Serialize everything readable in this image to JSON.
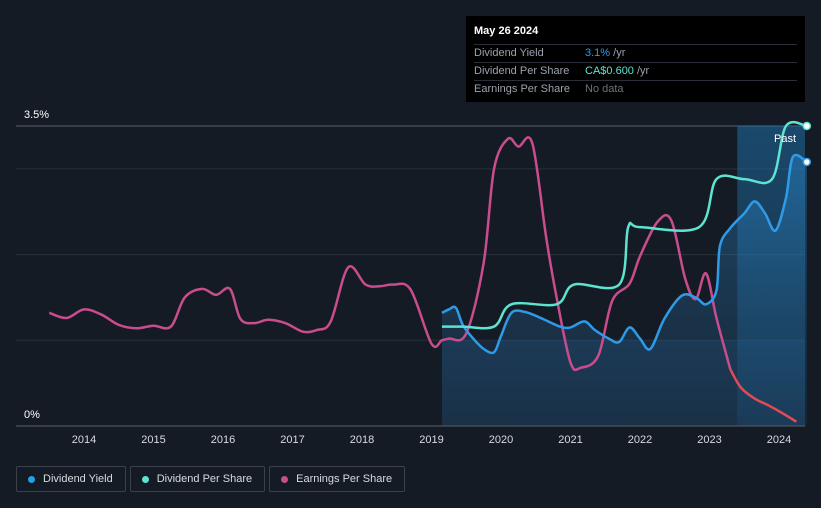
{
  "tooltip": {
    "date": "May 26 2024",
    "rows": [
      {
        "label": "Dividend Yield",
        "value": "3.1%",
        "unit": " /yr"
      },
      {
        "label": "Dividend Per Share",
        "value": "CA$0.600",
        "unit": " /yr"
      },
      {
        "label": "Earnings Per Share",
        "value": "No data"
      }
    ]
  },
  "past_label": "Past",
  "legend": [
    {
      "label": "Dividend Yield",
      "color": "#2f9ae8"
    },
    {
      "label": "Dividend Per Share",
      "color": "#5ee3d0"
    },
    {
      "label": "Earnings Per Share",
      "color": "#c94d8d"
    }
  ],
  "colors": {
    "background": "#151b24",
    "dividend_yield": "#2f9ae8",
    "dividend_per_share": "#5ee3d0",
    "earnings_per_share": "#c94d8d",
    "earnings_negative": "#e24a5a"
  },
  "chart_data": {
    "type": "line",
    "title": "",
    "xlabel": "",
    "ylabel": "",
    "y_tick_labels": [
      "0%",
      "3.5%"
    ],
    "ylim": [
      0,
      3.5
    ],
    "xlim": [
      2013.0,
      2024.4
    ],
    "x_ticks": [
      2014,
      2015,
      2016,
      2017,
      2018,
      2019,
      2020,
      2021,
      2022,
      2023,
      2024
    ],
    "past_region_start": 2023.4,
    "forecast_region_start": 2019.15,
    "series": [
      {
        "name": "Dividend Yield",
        "unit": "%",
        "x": [
          2019.15,
          2019.25,
          2019.35,
          2019.45,
          2019.6,
          2019.75,
          2019.9,
          2020.0,
          2020.15,
          2020.35,
          2020.6,
          2020.85,
          2021.0,
          2021.2,
          2021.35,
          2021.55,
          2021.7,
          2021.85,
          2022.0,
          2022.15,
          2022.35,
          2022.6,
          2022.8,
          2022.95,
          2023.1,
          2023.15,
          2023.3,
          2023.5,
          2023.65,
          2023.8,
          2023.95,
          2024.1,
          2024.2,
          2024.4
        ],
        "values": [
          1.32,
          1.36,
          1.38,
          1.18,
          1.02,
          0.9,
          0.86,
          1.05,
          1.32,
          1.33,
          1.25,
          1.16,
          1.15,
          1.22,
          1.12,
          1.02,
          0.98,
          1.15,
          1.02,
          0.9,
          1.25,
          1.52,
          1.5,
          1.42,
          1.58,
          2.1,
          2.31,
          2.48,
          2.62,
          2.48,
          2.28,
          2.66,
          3.14,
          3.08
        ]
      },
      {
        "name": "Dividend Per Share",
        "unit": "CA$",
        "x": [
          2019.15,
          2019.45,
          2019.9,
          2020.15,
          2020.8,
          2021.05,
          2021.7,
          2021.83,
          2022.0,
          2022.85,
          2023.1,
          2023.5,
          2023.9,
          2024.1,
          2024.4
        ],
        "values": [
          1.16,
          1.16,
          1.16,
          1.42,
          1.42,
          1.65,
          1.65,
          2.32,
          2.32,
          2.32,
          2.88,
          2.88,
          2.88,
          3.5,
          3.5
        ],
        "note": "values mapped to chart percent axis scale"
      },
      {
        "name": "Earnings Per Share",
        "unit": "%",
        "x": [
          2013.5,
          2013.75,
          2014.0,
          2014.25,
          2014.5,
          2014.75,
          2015.0,
          2015.25,
          2015.45,
          2015.7,
          2015.9,
          2016.1,
          2016.25,
          2016.45,
          2016.65,
          2016.9,
          2017.15,
          2017.35,
          2017.55,
          2017.8,
          2018.05,
          2018.25,
          2018.45,
          2018.7,
          2019.0,
          2019.15,
          2019.25,
          2019.5,
          2019.75,
          2019.9,
          2020.1,
          2020.25,
          2020.45,
          2020.65,
          2020.8,
          2021.0,
          2021.15,
          2021.4,
          2021.6,
          2021.85,
          2022.0,
          2022.25,
          2022.45,
          2022.65,
          2022.8,
          2022.95,
          2023.1,
          2023.3,
          2023.45,
          2023.65,
          2023.85,
          2024.05,
          2024.25
        ],
        "values": [
          1.32,
          1.26,
          1.36,
          1.3,
          1.18,
          1.14,
          1.17,
          1.16,
          1.5,
          1.6,
          1.53,
          1.6,
          1.25,
          1.2,
          1.24,
          1.2,
          1.1,
          1.12,
          1.22,
          1.85,
          1.65,
          1.63,
          1.65,
          1.59,
          0.96,
          1.0,
          1.02,
          1.08,
          1.9,
          3.0,
          3.35,
          3.26,
          3.3,
          2.2,
          1.5,
          0.74,
          0.68,
          0.82,
          1.46,
          1.66,
          1.98,
          2.38,
          2.4,
          1.72,
          1.48,
          1.78,
          1.26,
          0.66,
          0.45,
          0.32,
          0.24,
          0.15,
          0.05
        ]
      }
    ]
  }
}
